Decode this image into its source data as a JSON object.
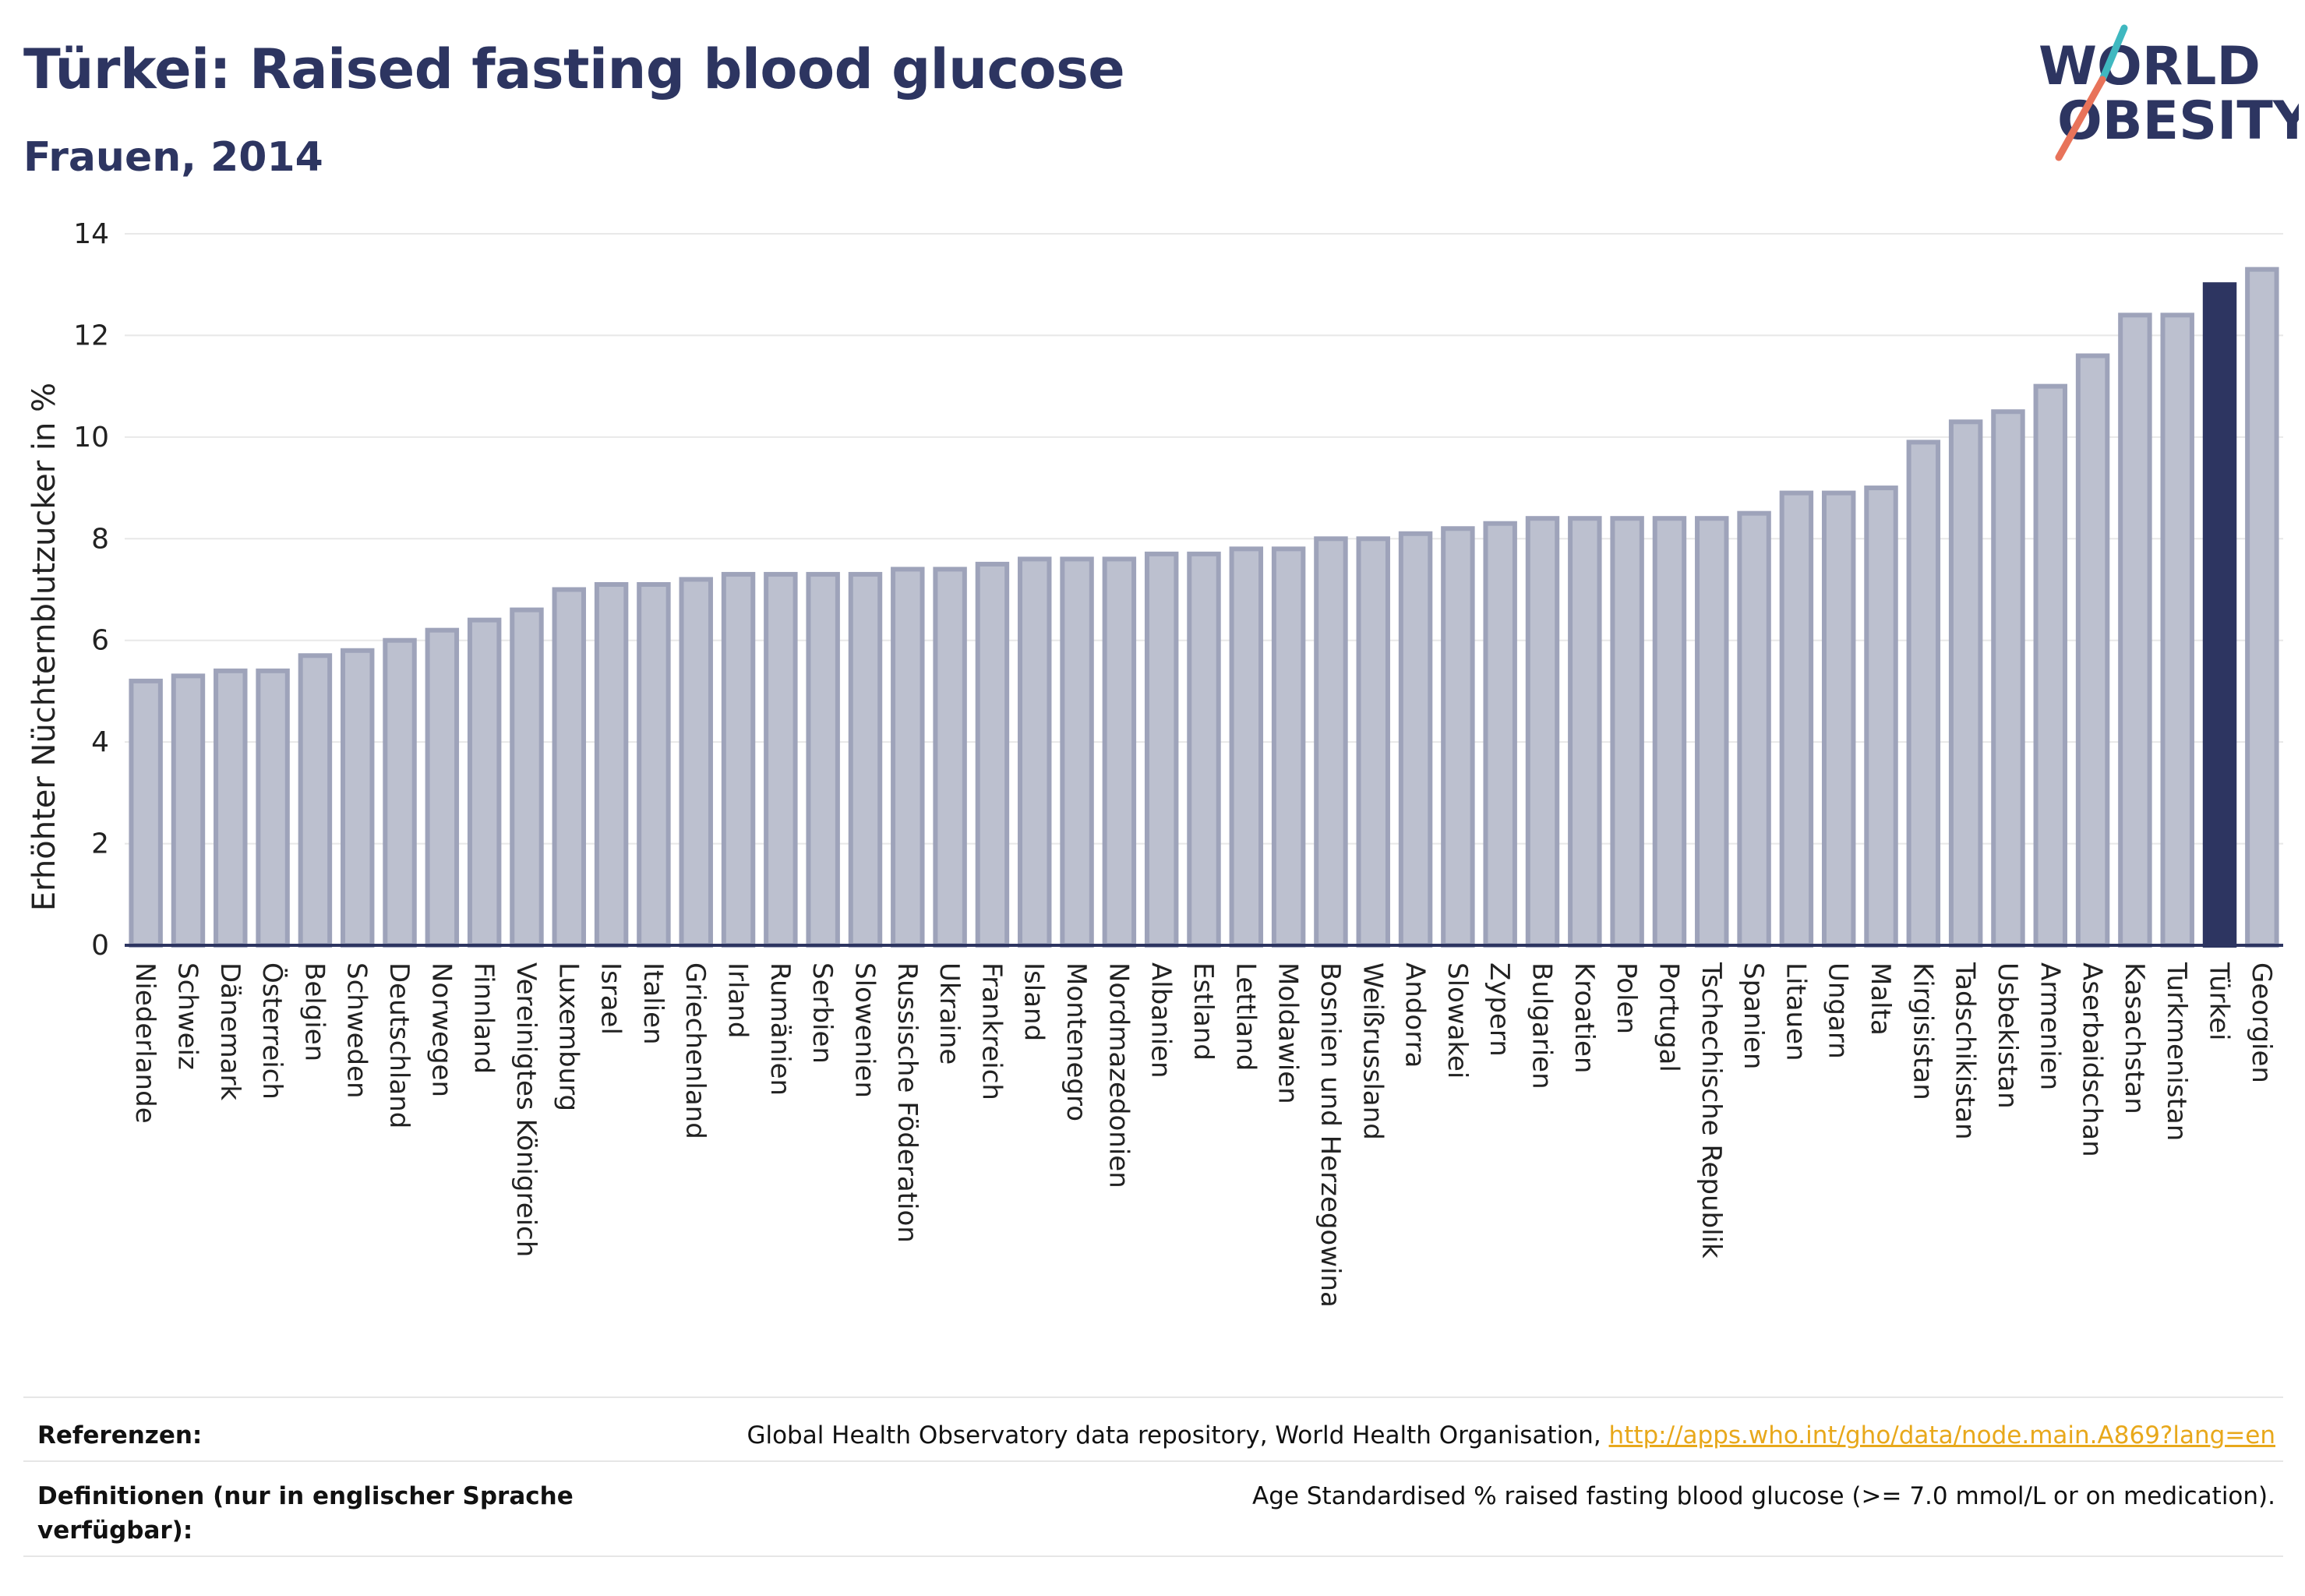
{
  "header": {
    "title": "Türkei: Raised fasting blood glucose",
    "subtitle": "Frauen, 2014"
  },
  "logo": {
    "line1": "WORLD",
    "line2": "OBESITY",
    "colors": {
      "text": "#2d3561",
      "slash_teal": "#3fb8c0",
      "slash_coral": "#e8735a"
    }
  },
  "chart_data": {
    "type": "bar",
    "title": "Türkei: Raised fasting blood glucose",
    "subtitle": "Frauen, 2014",
    "ylabel": "Erhöhter Nüchternblutzucker in %",
    "xlabel": "",
    "ylim": [
      0,
      14
    ],
    "yticks": [
      0,
      2,
      4,
      6,
      8,
      10,
      12,
      14
    ],
    "grid": true,
    "highlight": "Türkei",
    "colors": {
      "bar": "#bcc0cf",
      "bar_border": "#9ea3ba",
      "highlight": "#2d3561",
      "grid": "#e8e8e8"
    },
    "categories": [
      "Niederlande",
      "Schweiz",
      "Dänemark",
      "Österreich",
      "Belgien",
      "Schweden",
      "Deutschland",
      "Norwegen",
      "Finnland",
      "Vereinigtes Königreich",
      "Luxemburg",
      "Israel",
      "Italien",
      "Griechenland",
      "Irland",
      "Rumänien",
      "Serbien",
      "Slowenien",
      "Russische Föderation",
      "Ukraine",
      "Frankreich",
      "Island",
      "Montenegro",
      "Nordmazedonien",
      "Albanien",
      "Estland",
      "Lettland",
      "Moldawien",
      "Bosnien und Herzegowina",
      "Weißrussland",
      "Andorra",
      "Slowakei",
      "Zypern",
      "Bulgarien",
      "Kroatien",
      "Polen",
      "Portugal",
      "Tschechische Republik",
      "Spanien",
      "Litauen",
      "Ungarn",
      "Malta",
      "Kirgisistan",
      "Tadschikistan",
      "Usbekistan",
      "Armenien",
      "Aserbaidschan",
      "Kasachstan",
      "Turkmenistan",
      "Türkei",
      "Georgien"
    ],
    "values": [
      5.2,
      5.3,
      5.4,
      5.4,
      5.7,
      5.8,
      6.0,
      6.2,
      6.4,
      6.6,
      7.0,
      7.1,
      7.1,
      7.2,
      7.3,
      7.3,
      7.3,
      7.3,
      7.4,
      7.4,
      7.5,
      7.6,
      7.6,
      7.6,
      7.7,
      7.7,
      7.8,
      7.8,
      8.0,
      8.0,
      8.1,
      8.2,
      8.3,
      8.4,
      8.4,
      8.4,
      8.4,
      8.4,
      8.5,
      8.9,
      8.9,
      9.0,
      9.9,
      10.3,
      10.5,
      11.0,
      11.6,
      12.4,
      12.4,
      13.0,
      13.3
    ]
  },
  "footer": {
    "references_label": "Referenzen:",
    "references_text": "Global Health Observatory data repository, World Health Organisation, ",
    "references_link": "http://apps.who.int/gho/data/node.main.A869?lang=en",
    "definitions_label": "Definitionen (nur in englischer Sprache verfügbar):",
    "definitions_text": "Age Standardised % raised fasting blood glucose (>= 7.0 mmol/L or on medication)."
  }
}
